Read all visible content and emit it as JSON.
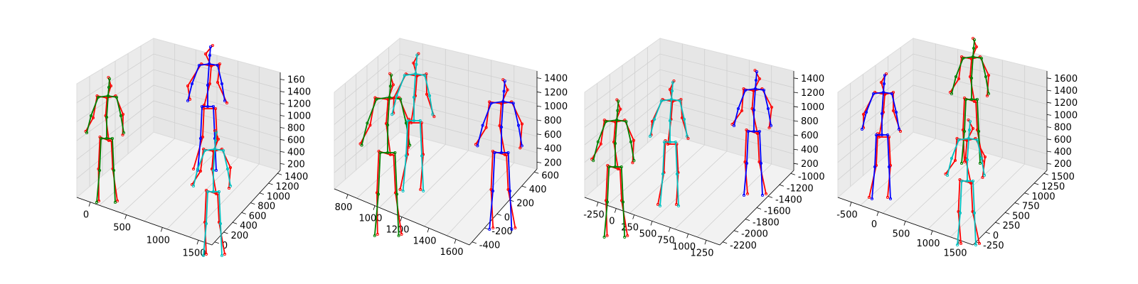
{
  "chart_data": [
    {
      "type": "3d-skeleton",
      "x_ticks": [
        "0",
        "500",
        "1000",
        "1500"
      ],
      "y_ticks": [
        "0",
        "200",
        "400",
        "600",
        "800",
        "1000",
        "1200",
        "1400"
      ],
      "z_ticks": [
        "200",
        "400",
        "600",
        "800",
        "1000",
        "1200",
        "1400",
        "160"
      ],
      "colors": {
        "gt": "#ff0000",
        "pred_a": "#008000",
        "pred_b": "#0000ff",
        "pred_c": "#00bfbf"
      }
    },
    {
      "type": "3d-skeleton",
      "x_ticks": [
        "800",
        "1000",
        "1200",
        "1400",
        "1600"
      ],
      "y_ticks": [
        "-400",
        "-200",
        "0",
        "200",
        "400",
        "600"
      ],
      "z_ticks": [
        "200",
        "400",
        "600",
        "800",
        "1000",
        "1200",
        "1400"
      ],
      "colors": {
        "gt": "#ff0000",
        "pred_a": "#008000",
        "pred_b": "#0000ff",
        "pred_c": "#00bfbf"
      }
    },
    {
      "type": "3d-skeleton",
      "x_ticks": [
        "-250",
        "0",
        "250",
        "500",
        "750",
        "1000",
        "1250"
      ],
      "y_ticks": [
        "-2200",
        "-2000",
        "-1800",
        "-1600",
        "-1400",
        "-1200",
        "-1000"
      ],
      "z_ticks": [
        "200",
        "400",
        "600",
        "800",
        "1000",
        "1200",
        "1400"
      ],
      "colors": {
        "gt": "#ff0000",
        "pred_a": "#008000",
        "pred_b": "#0000ff",
        "pred_c": "#00bfbf"
      }
    },
    {
      "type": "3d-skeleton",
      "x_ticks": [
        "-500",
        "0",
        "500",
        "1000",
        "1500"
      ],
      "y_ticks": [
        "-250",
        "0",
        "250",
        "500",
        "750",
        "1000",
        "1250",
        "1500"
      ],
      "z_ticks": [
        "200",
        "400",
        "600",
        "800",
        "1000",
        "1200",
        "1400",
        "1600"
      ],
      "colors": {
        "gt": "#ff0000",
        "pred_a": "#008000",
        "pred_b": "#0000ff",
        "pred_c": "#00bfbf"
      }
    }
  ]
}
